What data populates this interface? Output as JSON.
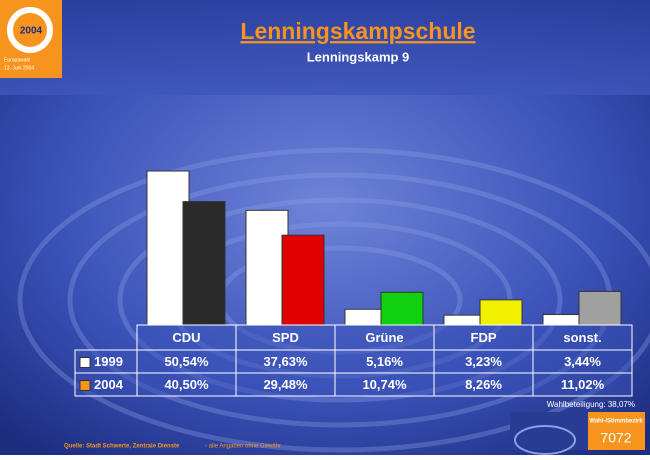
{
  "chart_data": {
    "type": "bar",
    "title": "Lenningskampschule",
    "subtitle": "Lenningskamp 9",
    "logo_year": "2004",
    "logo_caption": [
      "Europawahl",
      "13. Juni 2004"
    ],
    "categories": [
      "CDU",
      "SPD",
      "Grüne",
      "FDP",
      "sonst."
    ],
    "series": [
      {
        "name": "1999",
        "color": "#ffffff",
        "bar_colors": [
          "#ffffff",
          "#ffffff",
          "#ffffff",
          "#ffffff",
          "#ffffff"
        ],
        "values": [
          50.54,
          37.63,
          5.16,
          3.23,
          3.44
        ],
        "value_labels": [
          "50,54%",
          "37,63%",
          "5,16%",
          "3,23%",
          "3,44%"
        ]
      },
      {
        "name": "2004",
        "color": "#f7941d",
        "bar_colors": [
          "#2a2a2a",
          "#e00000",
          "#10d010",
          "#f0f000",
          "#a0a0a0"
        ],
        "values": [
          40.5,
          29.48,
          10.74,
          8.26,
          11.02
        ],
        "value_labels": [
          "40,50%",
          "29,48%",
          "10,74%",
          "8,26%",
          "11,02%"
        ]
      }
    ],
    "turnout": "Wahlbeteiligung: 38,07%",
    "source": "Quelle: Stadt Schwerte, Zentrale Dienste",
    "disclaimer": "- alle Angaben ohne Gewähr",
    "district_label": "Wahl-/Stimmbezirk",
    "district": "7072"
  }
}
